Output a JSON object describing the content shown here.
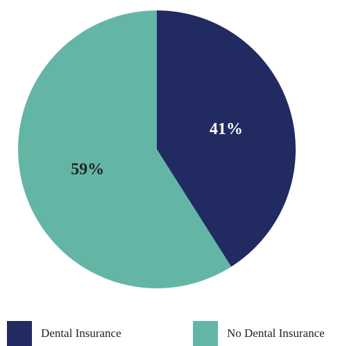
{
  "chart_data": {
    "type": "pie",
    "categories": [
      "Dental Insurance",
      "No Dental Insurance"
    ],
    "values": [
      41,
      59
    ],
    "labels": [
      "41%",
      "59%"
    ],
    "colors": [
      "#222a62",
      "#63b6a6"
    ],
    "label_colors": [
      "#ffffff",
      "#222222"
    ],
    "start_angle_deg": 0,
    "direction": "clockwise",
    "legend_position": "bottom"
  }
}
